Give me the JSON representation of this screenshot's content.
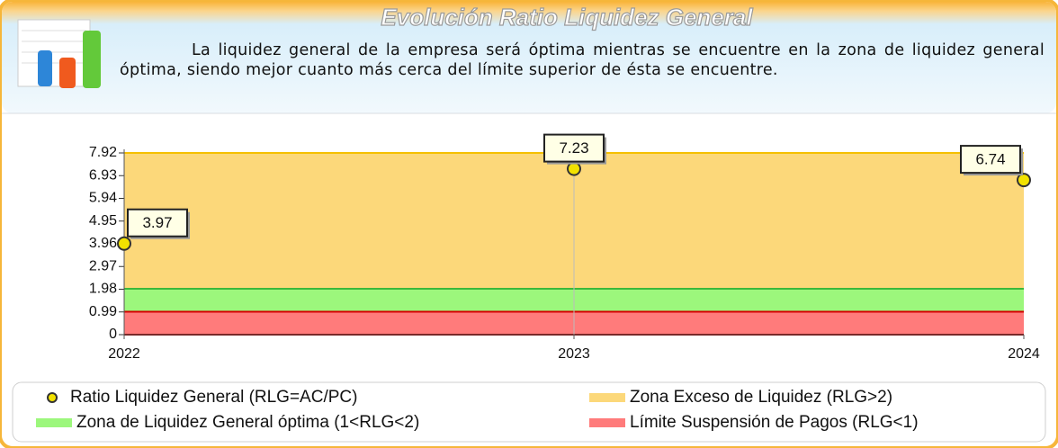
{
  "chart_data": {
    "type": "line",
    "title": "Evolución Ratio Liquidez General",
    "subtitle": "La liquidez general de la empresa será óptima mientras se encuentre en la zona de liquidez general óptima, siendo mejor cuanto más cerca del límite superior de ésta se encuentre.",
    "categories": [
      "2022",
      "2023",
      "2024"
    ],
    "series": [
      {
        "name": "Ratio Liquidez General (RLG=AC/PC)",
        "color": "#f2e200",
        "values": [
          3.97,
          7.23,
          6.74
        ]
      }
    ],
    "bands": [
      {
        "name": "Zona Exceso de Liquidez (RLG>2)",
        "color": "#fcd87a",
        "edge_color": "#f5c000",
        "range": [
          2,
          7.92
        ]
      },
      {
        "name": "Zona de Liquidez General  óptima (1<RLG<2)",
        "color": "#9cf77c",
        "edge_color": "#3cb83c",
        "range": [
          1,
          2
        ]
      },
      {
        "name": "Límite Suspensión de Pagos (RLG<1)",
        "color": "#ff7b7b",
        "edge_color": "#d40000",
        "range": [
          0,
          1
        ]
      }
    ],
    "ylim": [
      0,
      7.92
    ],
    "yticks": [
      0,
      0.99,
      1.98,
      2.97,
      3.96,
      4.95,
      5.94,
      6.93,
      7.92
    ],
    "grid": true
  }
}
